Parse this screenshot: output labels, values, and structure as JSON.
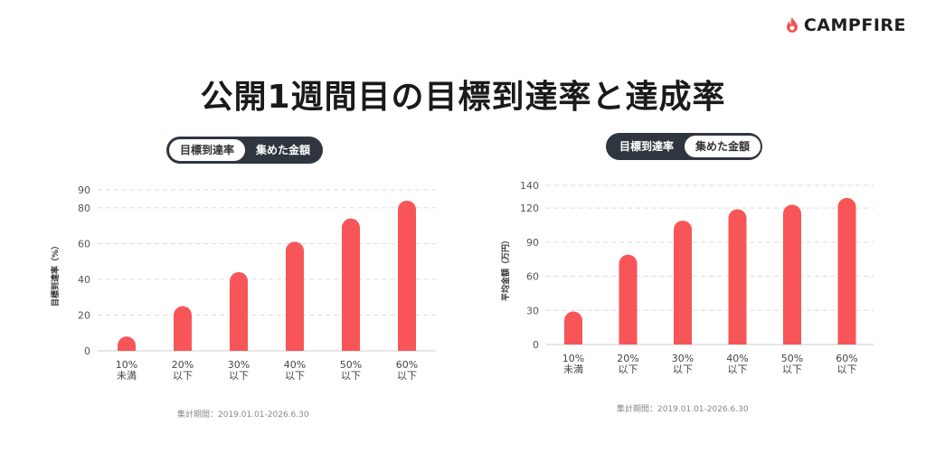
{
  "brand": {
    "name": "CAMPFIRE",
    "logo_color": "#f25455"
  },
  "title": "公開1週間目の目標到達率と達成率",
  "colors": {
    "bar": "#f85558",
    "grid": "#dddddd",
    "axis": "#cccccc",
    "toggle_bg": "#2f3640"
  },
  "left_toggle": {
    "options": [
      "目標到達率",
      "集めた金額"
    ],
    "selected": 0
  },
  "right_toggle": {
    "options": [
      "目標到達率",
      "集めた金額"
    ],
    "selected": 1
  },
  "left_period": "集計期間：2019.01.01-2026.6.30",
  "right_period": "集計期間：2019.01.01-2026.6.30",
  "chart_data": [
    {
      "type": "bar",
      "ylabel": "目標到達率（%）",
      "categories": [
        [
          "10%",
          "未満"
        ],
        [
          "20%",
          "以下"
        ],
        [
          "30%",
          "以下"
        ],
        [
          "40%",
          "以下"
        ],
        [
          "50%",
          "以下"
        ],
        [
          "60%",
          "以下"
        ]
      ],
      "values": [
        8,
        25,
        44,
        61,
        74,
        84
      ],
      "yticks": [
        0,
        20,
        40,
        60,
        80,
        90
      ],
      "ylim": [
        0,
        90
      ],
      "grid": true
    },
    {
      "type": "bar",
      "ylabel": "平均金額（万円）",
      "categories": [
        [
          "10%",
          "未満"
        ],
        [
          "20%",
          "以下"
        ],
        [
          "30%",
          "以下"
        ],
        [
          "40%",
          "以下"
        ],
        [
          "50%",
          "以下"
        ],
        [
          "60%",
          "以下"
        ]
      ],
      "values": [
        29,
        79,
        109,
        119,
        123,
        129
      ],
      "yticks": [
        0,
        30,
        60,
        90,
        120,
        140
      ],
      "ylim": [
        0,
        140
      ],
      "grid": true
    }
  ]
}
